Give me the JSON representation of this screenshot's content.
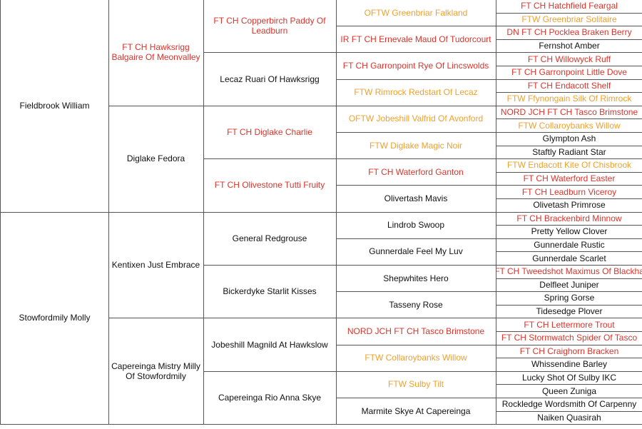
{
  "pedigree": {
    "generations": [
      [
        {
          "name": "Fieldbrook William",
          "color": "#111111"
        },
        {
          "name": "Stowfordmily Molly",
          "color": "#111111"
        }
      ],
      [
        {
          "name": "FT CH Hawksrigg Balgaire Of Meonvalley",
          "color": "#d9342b"
        },
        {
          "name": "Diglake Fedora",
          "color": "#111111"
        },
        {
          "name": "Kentixen Just Embrace",
          "color": "#111111"
        },
        {
          "name": "Capereinga Mistry Milly Of Stowfordmily",
          "color": "#111111"
        }
      ],
      [
        {
          "name": "FT CH Copperbirch Paddy Of Leadburn",
          "color": "#d9342b"
        },
        {
          "name": "Lecaz Ruari Of Hawksrigg",
          "color": "#111111"
        },
        {
          "name": "FT CH Diglake Charlie",
          "color": "#d9342b"
        },
        {
          "name": "FT CH Olivestone Tutti Fruity",
          "color": "#d9342b"
        },
        {
          "name": "General Redgrouse",
          "color": "#111111"
        },
        {
          "name": "Bickerdyke Starlit Kisses",
          "color": "#111111"
        },
        {
          "name": "Jobeshill Magnild At Hawkslow",
          "color": "#111111"
        },
        {
          "name": "Capereinga Rio Anna Skye",
          "color": "#111111"
        }
      ],
      [
        {
          "name": "OFTW Greenbriar Falkland",
          "color": "#eea12e"
        },
        {
          "name": "IR FT CH Ernevale Maud Of Tudorcourt",
          "color": "#d9342b"
        },
        {
          "name": "FT CH Garronpoint Rye Of Lincswolds",
          "color": "#d9342b"
        },
        {
          "name": "FTW Rimrock Redstart Of Lecaz",
          "color": "#eea12e"
        },
        {
          "name": "OFTW Jobeshill Valfrid Of Avonford",
          "color": "#eea12e"
        },
        {
          "name": "FTW Diglake Magic Noir",
          "color": "#eea12e"
        },
        {
          "name": "FT CH Waterford Ganton",
          "color": "#d9342b"
        },
        {
          "name": "Olivertash Mavis",
          "color": "#111111"
        },
        {
          "name": "Lindrob Swoop",
          "color": "#111111"
        },
        {
          "name": "Gunnerdale Feel My Luv",
          "color": "#111111"
        },
        {
          "name": "Shepwhites Hero",
          "color": "#111111"
        },
        {
          "name": "Tasseny Rose",
          "color": "#111111"
        },
        {
          "name": "NORD JCH FT CH Tasco Brimstone",
          "color": "#d9342b"
        },
        {
          "name": "FTW Collaroybanks Willow",
          "color": "#eea12e"
        },
        {
          "name": "FTW Sulby Tilt",
          "color": "#eea12e"
        },
        {
          "name": "Marmite Skye At Capereinga",
          "color": "#111111"
        }
      ],
      [
        {
          "name": "FT CH Hatchfield Feargal",
          "color": "#d9342b"
        },
        {
          "name": "FTW Greenbriar Solitaire",
          "color": "#eea12e"
        },
        {
          "name": "DN FT CH Pocklea Braken Berry",
          "color": "#d9342b"
        },
        {
          "name": "Fernshot Amber",
          "color": "#111111"
        },
        {
          "name": "FT CH Willowyck Ruff",
          "color": "#d9342b"
        },
        {
          "name": "FT CH Garronpoint Little Dove",
          "color": "#d9342b"
        },
        {
          "name": "FT CH Endacott Shelf",
          "color": "#d9342b"
        },
        {
          "name": "FTW Ffynongain Silk Of Rimrock",
          "color": "#eea12e"
        },
        {
          "name": "NORD JCH FT CH Tasco Brimstone",
          "color": "#d9342b"
        },
        {
          "name": "FTW Collaroybanks Willow",
          "color": "#eea12e"
        },
        {
          "name": "Glympton Ash",
          "color": "#111111"
        },
        {
          "name": "Staftly Radiant Star",
          "color": "#111111"
        },
        {
          "name": "FTW Endacott Kite Of Chisbrook",
          "color": "#eea12e"
        },
        {
          "name": "FT CH Waterford Easter",
          "color": "#d9342b"
        },
        {
          "name": "FT CH Leadburn Viceroy",
          "color": "#d9342b"
        },
        {
          "name": "Olivetash Primrose",
          "color": "#111111"
        },
        {
          "name": "FT CH Brackenbird Minnow",
          "color": "#d9342b"
        },
        {
          "name": "Pretty Yellow Clover",
          "color": "#111111"
        },
        {
          "name": "Gunnerdale Rustic",
          "color": "#111111"
        },
        {
          "name": "Gunnerdale Scarlet",
          "color": "#111111"
        },
        {
          "name": "FT CH Tweedshot Maximus Of Blackha",
          "color": "#d9342b"
        },
        {
          "name": "Delfleet Juniper",
          "color": "#111111"
        },
        {
          "name": "Spring Gorse",
          "color": "#111111"
        },
        {
          "name": "Tidesedge Plover",
          "color": "#111111"
        },
        {
          "name": "FT CH Lettermore Trout",
          "color": "#d9342b"
        },
        {
          "name": "FT CH Stormwatch Spider Of Tasco",
          "color": "#d9342b"
        },
        {
          "name": "FT CH Craighorn Bracken",
          "color": "#d9342b"
        },
        {
          "name": "Whissendine Barley",
          "color": "#111111"
        },
        {
          "name": "Lucky Shot Of Sulby IKC",
          "color": "#111111"
        },
        {
          "name": "Queen Zuniga",
          "color": "#111111"
        },
        {
          "name": "Rockledge Wordsmith Of Carpenny",
          "color": "#111111"
        },
        {
          "name": "Naiken Quasirah",
          "color": "#111111"
        }
      ]
    ]
  }
}
